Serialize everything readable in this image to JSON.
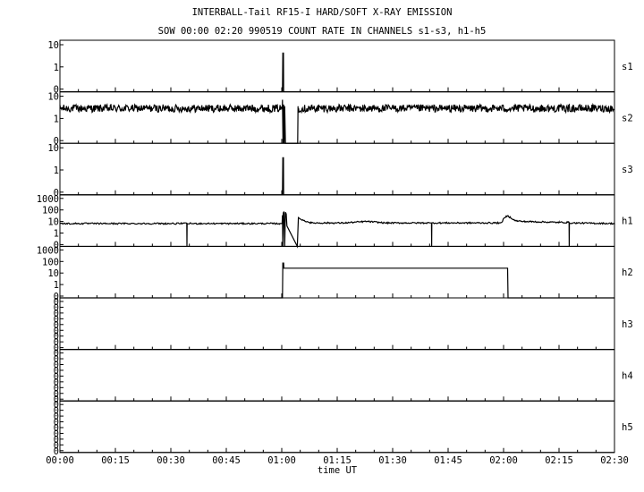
{
  "header": {
    "title": "INTERBALL-Tail RF15-I HARD/SOFT X-RAY EMISSION",
    "subtitle": "SOW 00:00 02:20 990519  COUNT RATE IN CHANNELS s1-s3, h1-h5"
  },
  "chart_data": {
    "type": "line",
    "xlabel": "time UT",
    "x_ticks": [
      "00:00",
      "00:15",
      "00:30",
      "00:45",
      "01:00",
      "01:15",
      "01:30",
      "01:45",
      "02:00",
      "02:15",
      "02:30"
    ],
    "xlim_minutes": [
      0,
      150
    ],
    "y_scale": "log",
    "panels": [
      {
        "name": "s1",
        "y_ticks": [
          "10",
          "1",
          "0"
        ],
        "points": [
          [
            0,
            0
          ],
          [
            60.2,
            0
          ],
          [
            60.3,
            6
          ],
          [
            60.45,
            6
          ],
          [
            60.5,
            0
          ],
          [
            150,
            0
          ]
        ]
      },
      {
        "name": "s2",
        "y_ticks": [
          "10",
          "1",
          "0"
        ],
        "baseline": 4,
        "gap": [
          60.2,
          64.4
        ],
        "points": [
          [
            60.2,
            10
          ],
          [
            60.35,
            0
          ],
          [
            60.5,
            6
          ],
          [
            60.65,
            0
          ],
          [
            60.8,
            5
          ],
          [
            61.0,
            0
          ],
          [
            64.3,
            0
          ],
          [
            64.4,
            5
          ]
        ]
      },
      {
        "name": "s3",
        "y_ticks": [
          "10",
          "1",
          "0"
        ],
        "points": [
          [
            0,
            0
          ],
          [
            60.2,
            0
          ],
          [
            60.3,
            5
          ],
          [
            60.45,
            5
          ],
          [
            60.5,
            0
          ],
          [
            150,
            0
          ]
        ]
      },
      {
        "name": "h1",
        "y_ticks": [
          "1000",
          "100",
          "10",
          "1",
          "0"
        ],
        "points": [
          [
            0,
            8
          ],
          [
            33,
            8
          ],
          [
            34.3,
            8
          ],
          [
            34.35,
            0
          ],
          [
            34.4,
            8
          ],
          [
            59.5,
            8
          ],
          [
            60.1,
            8
          ],
          [
            60.2,
            40
          ],
          [
            60.3,
            0
          ],
          [
            60.4,
            60
          ],
          [
            60.6,
            80
          ],
          [
            60.8,
            0
          ],
          [
            61.0,
            70
          ],
          [
            61.2,
            50
          ],
          [
            61.4,
            5
          ],
          [
            64.2,
            0
          ],
          [
            64.5,
            25
          ],
          [
            65.5,
            15
          ],
          [
            68,
            9
          ],
          [
            77,
            9
          ],
          [
            83,
            12
          ],
          [
            88,
            9
          ],
          [
            100,
            9
          ],
          [
            100.5,
            9
          ],
          [
            100.55,
            0
          ],
          [
            100.6,
            9
          ],
          [
            119,
            9
          ],
          [
            119.5,
            10
          ],
          [
            121,
            35
          ],
          [
            123,
            14
          ],
          [
            125,
            12
          ],
          [
            135,
            10
          ],
          [
            137.7,
            10
          ],
          [
            137.75,
            0
          ],
          [
            137.8,
            9
          ],
          [
            150,
            8
          ]
        ]
      },
      {
        "name": "h2",
        "y_ticks": [
          "1000",
          "100",
          "10",
          "1",
          "0"
        ],
        "points": [
          [
            0,
            0
          ],
          [
            60.2,
            0
          ],
          [
            60.3,
            80
          ],
          [
            60.5,
            80
          ],
          [
            60.55,
            30
          ],
          [
            121.1,
            30
          ],
          [
            121.2,
            0
          ],
          [
            150,
            0
          ]
        ]
      },
      {
        "name": "h3",
        "y_ticks": [
          "0",
          "0",
          "0",
          "0",
          "0",
          "0",
          "0",
          "0",
          "0"
        ],
        "points": [
          [
            0,
            0
          ],
          [
            150,
            0
          ]
        ]
      },
      {
        "name": "h4",
        "y_ticks": [
          "0",
          "0",
          "0",
          "0",
          "0",
          "0",
          "0",
          "0",
          "0"
        ],
        "points": [
          [
            0,
            0
          ],
          [
            150,
            0
          ]
        ]
      },
      {
        "name": "h5",
        "y_ticks": [
          "0",
          "0",
          "0",
          "0",
          "0",
          "0",
          "0",
          "0",
          "0"
        ],
        "points": [
          [
            0,
            0
          ],
          [
            150,
            0
          ]
        ]
      }
    ]
  }
}
